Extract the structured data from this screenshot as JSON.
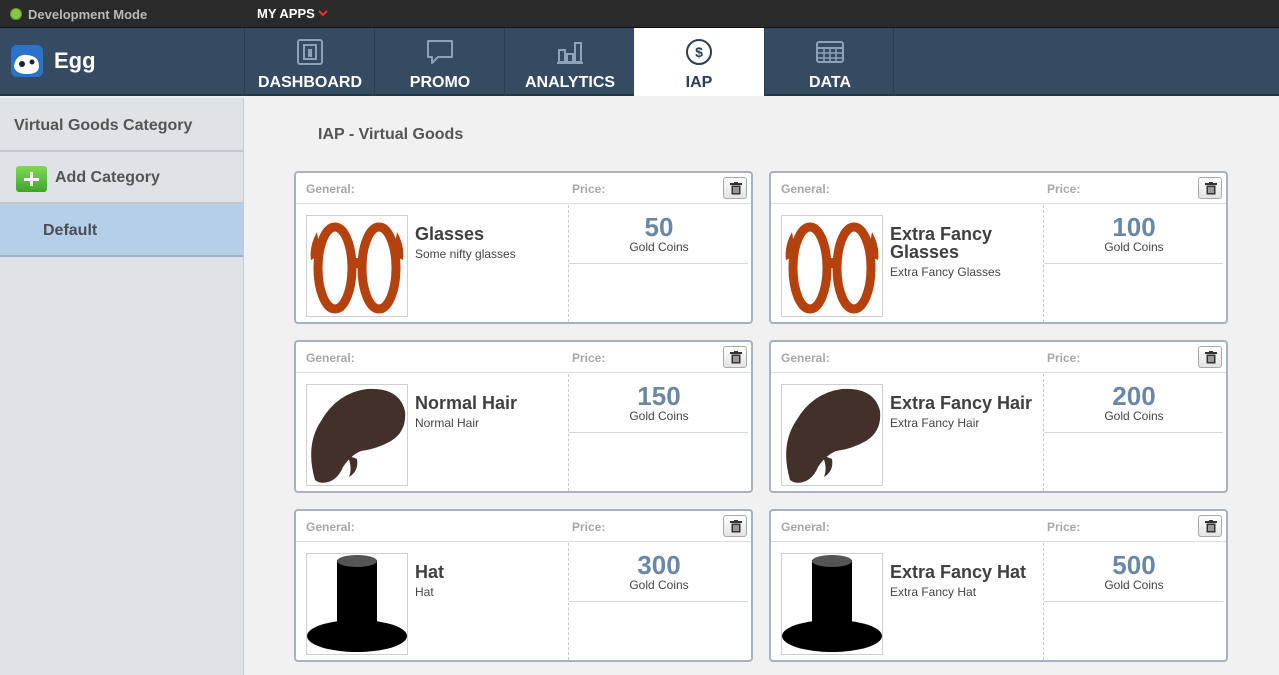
{
  "dev_mode": {
    "label": "Development Mode"
  },
  "my_apps": {
    "label": "MY APPS"
  },
  "app": {
    "name": "Egg"
  },
  "tabs": [
    {
      "label": "DASHBOARD",
      "icon": "dashboard-icon"
    },
    {
      "label": "PROMO",
      "icon": "chat-bubble-icon"
    },
    {
      "label": "ANALYTICS",
      "icon": "bar-chart-icon"
    },
    {
      "label": "IAP",
      "icon": "dollar-icon",
      "active": true
    },
    {
      "label": "DATA",
      "icon": "table-icon"
    }
  ],
  "sidebar": {
    "heading": "Virtual Goods Category",
    "add_label": "Add Category",
    "categories": [
      {
        "label": "Default",
        "selected": true
      }
    ]
  },
  "main": {
    "title": "IAP - Virtual Goods",
    "general_header": "General:",
    "price_header": "Price:",
    "items": [
      {
        "name": "Glasses",
        "description": "Some nifty glasses",
        "price": "50",
        "currency": "Gold Coins",
        "image": "glasses-icon"
      },
      {
        "name": "Extra Fancy Glasses",
        "description": "Extra Fancy Glasses",
        "price": "100",
        "currency": "Gold Coins",
        "image": "glasses-icon"
      },
      {
        "name": "Normal Hair",
        "description": "Normal Hair",
        "price": "150",
        "currency": "Gold Coins",
        "image": "hair-icon"
      },
      {
        "name": "Extra Fancy Hair",
        "description": "Extra Fancy Hair",
        "price": "200",
        "currency": "Gold Coins",
        "image": "hair-icon"
      },
      {
        "name": "Hat",
        "description": "Hat",
        "price": "300",
        "currency": "Gold Coins",
        "image": "top-hat-icon"
      },
      {
        "name": "Extra Fancy Hat",
        "description": "Extra Fancy Hat",
        "price": "500",
        "currency": "Gold Coins",
        "image": "top-hat-icon"
      }
    ]
  },
  "colors": {
    "nav_bg": "#344b62",
    "price": "#6a88a6",
    "selected_category": "#b6cfe8",
    "glasses": "#b5410f",
    "hair": "#44302a"
  }
}
